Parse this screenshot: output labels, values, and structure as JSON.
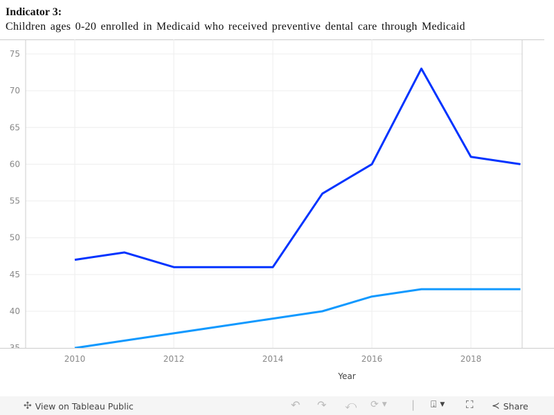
{
  "header": {
    "title": "Indicator 3:",
    "subtitle": "Children ages 0-20 enrolled in Medicaid who received preventive dental care through Medicaid"
  },
  "chart_data": {
    "type": "line",
    "x": [
      2010,
      2011,
      2012,
      2013,
      2014,
      2015,
      2016,
      2017,
      2018,
      2019
    ],
    "series": [
      {
        "color": "#0033ff",
        "values": [
          47,
          48,
          46,
          46,
          46,
          56,
          60,
          73,
          61,
          60
        ]
      },
      {
        "color": "#1199ff",
        "values": [
          35,
          36,
          37,
          38,
          39,
          40,
          42,
          43,
          43,
          43
        ]
      }
    ],
    "xlabel": "Year",
    "ylabel": "",
    "xticks": [
      2010,
      2012,
      2014,
      2016,
      2018
    ],
    "yticks": [
      35,
      40,
      45,
      50,
      55,
      60,
      65,
      70,
      75
    ],
    "xlim": [
      2009,
      2019.05
    ],
    "ylim": [
      35,
      77
    ],
    "grid": true
  },
  "toolbar": {
    "view_label": "View on Tableau Public",
    "share_label": "Share",
    "icons": [
      "tableau-logo-icon",
      "undo-icon",
      "redo-icon",
      "revert-icon",
      "refresh-icon",
      "download-icon",
      "fullscreen-icon",
      "share-icon"
    ]
  }
}
